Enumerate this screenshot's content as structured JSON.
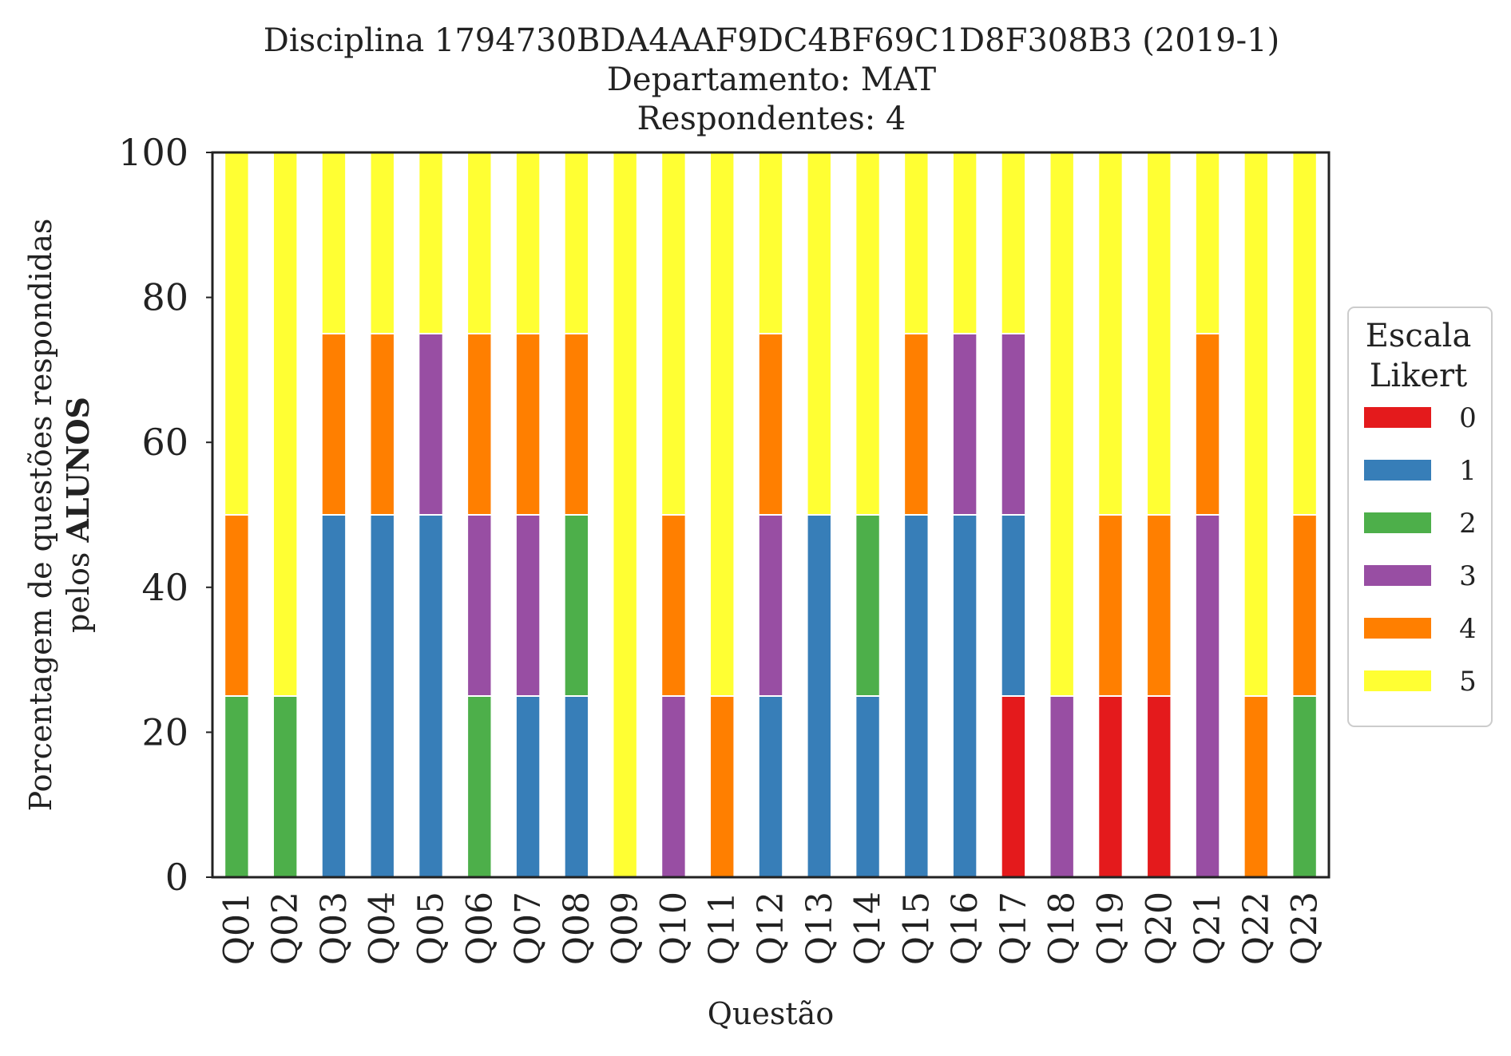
{
  "chart_data": {
    "type": "bar",
    "stacked": true,
    "title_lines": [
      "Disciplina 1794730BDA4AAF9DC4BF69C1D8F308B3 (2019-1)",
      "Departamento: MAT",
      "Respondentes: 4"
    ],
    "xlabel": "Questão",
    "ylabel_line1": "Porcentagem de questões respondidas",
    "ylabel_line2_prefix": "pelos ",
    "ylabel_line2_bold": "ALUNOS",
    "ylim": [
      0,
      100
    ],
    "yticks": [
      "0",
      "20",
      "40",
      "60",
      "80",
      "100"
    ],
    "grid": false,
    "legend": {
      "title_line1": "Escala",
      "title_line2": "Likert",
      "placement": "right"
    },
    "categories": [
      "Q01",
      "Q02",
      "Q03",
      "Q04",
      "Q05",
      "Q06",
      "Q07",
      "Q08",
      "Q09",
      "Q10",
      "Q11",
      "Q12",
      "Q13",
      "Q14",
      "Q15",
      "Q16",
      "Q17",
      "Q18",
      "Q19",
      "Q20",
      "Q21",
      "Q22",
      "Q23"
    ],
    "series": [
      {
        "name": "0",
        "color": "#e41a1c",
        "values": [
          0,
          0,
          0,
          0,
          0,
          0,
          0,
          0,
          0,
          0,
          0,
          0,
          0,
          0,
          0,
          0,
          25,
          0,
          25,
          25,
          0,
          0,
          0
        ]
      },
      {
        "name": "1",
        "color": "#377eb8",
        "values": [
          0,
          0,
          50,
          50,
          50,
          0,
          25,
          25,
          0,
          0,
          0,
          25,
          50,
          25,
          50,
          50,
          25,
          0,
          0,
          0,
          0,
          0,
          0
        ]
      },
      {
        "name": "2",
        "color": "#4daf4a",
        "values": [
          25,
          25,
          0,
          0,
          0,
          25,
          0,
          25,
          0,
          0,
          0,
          0,
          0,
          25,
          0,
          0,
          0,
          0,
          0,
          0,
          0,
          0,
          25
        ]
      },
      {
        "name": "3",
        "color": "#984ea3",
        "values": [
          0,
          0,
          0,
          0,
          25,
          25,
          25,
          0,
          0,
          25,
          0,
          25,
          0,
          0,
          0,
          25,
          25,
          25,
          0,
          0,
          50,
          0,
          0
        ]
      },
      {
        "name": "4",
        "color": "#ff7f00",
        "values": [
          25,
          0,
          25,
          25,
          0,
          25,
          25,
          25,
          0,
          25,
          25,
          25,
          0,
          0,
          25,
          0,
          0,
          0,
          25,
          25,
          25,
          25,
          25
        ]
      },
      {
        "name": "5",
        "color": "#ffff33",
        "values": [
          50,
          75,
          25,
          25,
          25,
          25,
          25,
          25,
          100,
          50,
          75,
          25,
          50,
          50,
          25,
          25,
          25,
          75,
          50,
          50,
          25,
          75,
          50
        ]
      }
    ]
  }
}
